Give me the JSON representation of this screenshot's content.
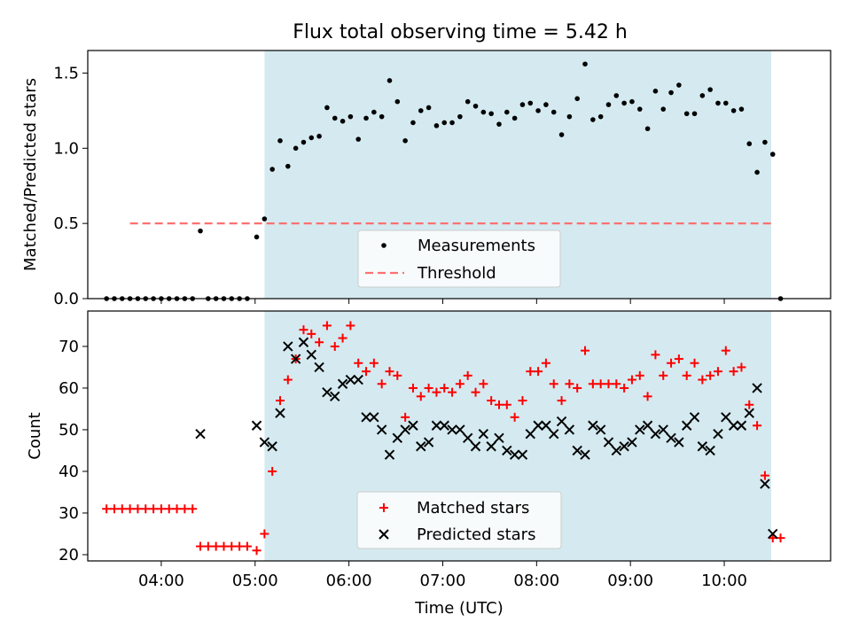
{
  "title": "Flux total observing time = 5.42 h",
  "colors": {
    "measurement": "#000000",
    "threshold": "#ff7070",
    "matched": "#ff0000",
    "predicted": "#000000",
    "observing_span": "#d4eaf0"
  },
  "chart_data": [
    {
      "type": "scatter",
      "xlabel": "",
      "ylabel": "Matched/Predicted stars",
      "ylim": [
        0,
        1.65
      ],
      "yticks": [
        0,
        0.5,
        1.0,
        1.5
      ],
      "ytick_labels": [
        "0.0",
        "0.5",
        "1.0",
        "1.5"
      ],
      "shaded_span": [
        "05:06",
        "10:30"
      ],
      "threshold": 0.5,
      "threshold_span": [
        "03:40",
        "10:32"
      ],
      "legend": {
        "placement": "lower-center",
        "entries": [
          "Measurements",
          "Threshold"
        ]
      },
      "series": [
        {
          "name": "Measurements",
          "points": [
            [
              "03:25",
              0
            ],
            [
              "03:30",
              0
            ],
            [
              "03:35",
              0
            ],
            [
              "03:40",
              0
            ],
            [
              "03:45",
              0
            ],
            [
              "03:50",
              0
            ],
            [
              "03:55",
              0
            ],
            [
              "04:00",
              0
            ],
            [
              "04:05",
              0
            ],
            [
              "04:10",
              0
            ],
            [
              "04:15",
              0
            ],
            [
              "04:20",
              0
            ],
            [
              "04:25",
              0.45
            ],
            [
              "04:30",
              0
            ],
            [
              "04:35",
              0
            ],
            [
              "04:40",
              0
            ],
            [
              "04:45",
              0
            ],
            [
              "04:50",
              0
            ],
            [
              "04:55",
              0
            ],
            [
              "05:01",
              0.41
            ],
            [
              "05:06",
              0.53
            ],
            [
              "05:11",
              0.86
            ],
            [
              "05:16",
              1.05
            ],
            [
              "05:21",
              0.88
            ],
            [
              "05:26",
              1.0
            ],
            [
              "05:31",
              1.04
            ],
            [
              "05:36",
              1.07
            ],
            [
              "05:41",
              1.08
            ],
            [
              "05:46",
              1.27
            ],
            [
              "05:51",
              1.2
            ],
            [
              "05:56",
              1.18
            ],
            [
              "06:01",
              1.21
            ],
            [
              "06:06",
              1.06
            ],
            [
              "06:11",
              1.2
            ],
            [
              "06:16",
              1.24
            ],
            [
              "06:21",
              1.21
            ],
            [
              "06:26",
              1.45
            ],
            [
              "06:31",
              1.31
            ],
            [
              "06:36",
              1.05
            ],
            [
              "06:41",
              1.17
            ],
            [
              "06:46",
              1.25
            ],
            [
              "06:51",
              1.27
            ],
            [
              "06:56",
              1.15
            ],
            [
              "07:01",
              1.17
            ],
            [
              "07:06",
              1.17
            ],
            [
              "07:11",
              1.21
            ],
            [
              "07:16",
              1.31
            ],
            [
              "07:21",
              1.28
            ],
            [
              "07:26",
              1.24
            ],
            [
              "07:31",
              1.23
            ],
            [
              "07:36",
              1.16
            ],
            [
              "07:41",
              1.24
            ],
            [
              "07:46",
              1.2
            ],
            [
              "07:51",
              1.29
            ],
            [
              "07:56",
              1.3
            ],
            [
              "08:01",
              1.25
            ],
            [
              "08:06",
              1.29
            ],
            [
              "08:11",
              1.24
            ],
            [
              "08:16",
              1.09
            ],
            [
              "08:21",
              1.21
            ],
            [
              "08:26",
              1.33
            ],
            [
              "08:31",
              1.56
            ],
            [
              "08:36",
              1.19
            ],
            [
              "08:41",
              1.21
            ],
            [
              "08:46",
              1.29
            ],
            [
              "08:51",
              1.35
            ],
            [
              "08:56",
              1.3
            ],
            [
              "09:01",
              1.31
            ],
            [
              "09:06",
              1.26
            ],
            [
              "09:11",
              1.13
            ],
            [
              "09:16",
              1.38
            ],
            [
              "09:21",
              1.26
            ],
            [
              "09:26",
              1.37
            ],
            [
              "09:31",
              1.42
            ],
            [
              "09:36",
              1.23
            ],
            [
              "09:41",
              1.23
            ],
            [
              "09:46",
              1.35
            ],
            [
              "09:51",
              1.39
            ],
            [
              "09:56",
              1.3
            ],
            [
              "10:01",
              1.3
            ],
            [
              "10:06",
              1.25
            ],
            [
              "10:11",
              1.26
            ],
            [
              "10:16",
              1.03
            ],
            [
              "10:21",
              0.84
            ],
            [
              "10:26",
              1.04
            ],
            [
              "10:31",
              0.96
            ],
            [
              "10:36",
              0
            ]
          ]
        }
      ]
    },
    {
      "type": "scatter",
      "xlabel": "Time (UTC)",
      "ylabel": "Count",
      "xlim": [
        "03:13",
        "11:08"
      ],
      "ylim": [
        18.5,
        78.5
      ],
      "yticks": [
        20,
        30,
        40,
        50,
        60,
        70
      ],
      "xticks": [
        "04:00",
        "05:00",
        "06:00",
        "07:00",
        "08:00",
        "09:00",
        "10:00"
      ],
      "shaded_span": [
        "05:06",
        "10:30"
      ],
      "legend": {
        "placement": "lower-center",
        "entries": [
          "Matched stars",
          "Predicted stars"
        ]
      },
      "series": [
        {
          "name": "Matched stars",
          "points": [
            [
              "03:25",
              31
            ],
            [
              "03:30",
              31
            ],
            [
              "03:35",
              31
            ],
            [
              "03:40",
              31
            ],
            [
              "03:45",
              31
            ],
            [
              "03:50",
              31
            ],
            [
              "03:55",
              31
            ],
            [
              "04:00",
              31
            ],
            [
              "04:05",
              31
            ],
            [
              "04:10",
              31
            ],
            [
              "04:15",
              31
            ],
            [
              "04:20",
              31
            ],
            [
              "04:25",
              22
            ],
            [
              "04:30",
              22
            ],
            [
              "04:35",
              22
            ],
            [
              "04:40",
              22
            ],
            [
              "04:45",
              22
            ],
            [
              "04:50",
              22
            ],
            [
              "04:55",
              22
            ],
            [
              "05:01",
              21
            ],
            [
              "05:06",
              25
            ],
            [
              "05:11",
              40
            ],
            [
              "05:16",
              57
            ],
            [
              "05:21",
              62
            ],
            [
              "05:26",
              67
            ],
            [
              "05:31",
              74
            ],
            [
              "05:36",
              73
            ],
            [
              "05:41",
              71
            ],
            [
              "05:46",
              75
            ],
            [
              "05:51",
              70
            ],
            [
              "05:56",
              72
            ],
            [
              "06:01",
              75
            ],
            [
              "06:06",
              66
            ],
            [
              "06:11",
              64
            ],
            [
              "06:16",
              66
            ],
            [
              "06:21",
              61
            ],
            [
              "06:26",
              64
            ],
            [
              "06:31",
              63
            ],
            [
              "06:36",
              53
            ],
            [
              "06:41",
              60
            ],
            [
              "06:46",
              58
            ],
            [
              "06:51",
              60
            ],
            [
              "06:56",
              59
            ],
            [
              "07:01",
              60
            ],
            [
              "07:06",
              59
            ],
            [
              "07:11",
              61
            ],
            [
              "07:16",
              63
            ],
            [
              "07:21",
              59
            ],
            [
              "07:26",
              61
            ],
            [
              "07:31",
              57
            ],
            [
              "07:36",
              56
            ],
            [
              "07:41",
              56
            ],
            [
              "07:46",
              53
            ],
            [
              "07:51",
              57
            ],
            [
              "07:56",
              64
            ],
            [
              "08:01",
              64
            ],
            [
              "08:06",
              66
            ],
            [
              "08:11",
              61
            ],
            [
              "08:16",
              57
            ],
            [
              "08:21",
              61
            ],
            [
              "08:26",
              60
            ],
            [
              "08:31",
              69
            ],
            [
              "08:36",
              61
            ],
            [
              "08:41",
              61
            ],
            [
              "08:46",
              61
            ],
            [
              "08:51",
              61
            ],
            [
              "08:56",
              60
            ],
            [
              "09:01",
              62
            ],
            [
              "09:06",
              63
            ],
            [
              "09:11",
              58
            ],
            [
              "09:16",
              68
            ],
            [
              "09:21",
              63
            ],
            [
              "09:26",
              66
            ],
            [
              "09:31",
              67
            ],
            [
              "09:36",
              63
            ],
            [
              "09:41",
              66
            ],
            [
              "09:46",
              62
            ],
            [
              "09:51",
              63
            ],
            [
              "09:56",
              64
            ],
            [
              "10:01",
              69
            ],
            [
              "10:06",
              64
            ],
            [
              "10:11",
              65
            ],
            [
              "10:16",
              56
            ],
            [
              "10:21",
              51
            ],
            [
              "10:26",
              39
            ],
            [
              "10:31",
              24
            ],
            [
              "10:36",
              24
            ]
          ]
        },
        {
          "name": "Predicted stars",
          "points": [
            [
              "04:25",
              49
            ],
            [
              "05:01",
              51
            ],
            [
              "05:06",
              47
            ],
            [
              "05:11",
              46
            ],
            [
              "05:16",
              54
            ],
            [
              "05:21",
              70
            ],
            [
              "05:26",
              67
            ],
            [
              "05:31",
              71
            ],
            [
              "05:36",
              68
            ],
            [
              "05:41",
              65
            ],
            [
              "05:46",
              59
            ],
            [
              "05:51",
              58
            ],
            [
              "05:56",
              61
            ],
            [
              "06:01",
              62
            ],
            [
              "06:06",
              62
            ],
            [
              "06:11",
              53
            ],
            [
              "06:16",
              53
            ],
            [
              "06:21",
              50
            ],
            [
              "06:26",
              44
            ],
            [
              "06:31",
              48
            ],
            [
              "06:36",
              50
            ],
            [
              "06:41",
              51
            ],
            [
              "06:46",
              46
            ],
            [
              "06:51",
              47
            ],
            [
              "06:56",
              51
            ],
            [
              "07:01",
              51
            ],
            [
              "07:06",
              50
            ],
            [
              "07:11",
              50
            ],
            [
              "07:16",
              48
            ],
            [
              "07:21",
              46
            ],
            [
              "07:26",
              49
            ],
            [
              "07:31",
              46
            ],
            [
              "07:36",
              48
            ],
            [
              "07:41",
              45
            ],
            [
              "07:46",
              44
            ],
            [
              "07:51",
              44
            ],
            [
              "07:56",
              49
            ],
            [
              "08:01",
              51
            ],
            [
              "08:06",
              51
            ],
            [
              "08:11",
              49
            ],
            [
              "08:16",
              52
            ],
            [
              "08:21",
              50
            ],
            [
              "08:26",
              45
            ],
            [
              "08:31",
              44
            ],
            [
              "08:36",
              51
            ],
            [
              "08:41",
              50
            ],
            [
              "08:46",
              47
            ],
            [
              "08:51",
              45
            ],
            [
              "08:56",
              46
            ],
            [
              "09:01",
              47
            ],
            [
              "09:06",
              50
            ],
            [
              "09:11",
              51
            ],
            [
              "09:16",
              49
            ],
            [
              "09:21",
              50
            ],
            [
              "09:26",
              48
            ],
            [
              "09:31",
              47
            ],
            [
              "09:36",
              51
            ],
            [
              "09:41",
              53
            ],
            [
              "09:46",
              46
            ],
            [
              "09:51",
              45
            ],
            [
              "09:56",
              49
            ],
            [
              "10:01",
              53
            ],
            [
              "10:06",
              51
            ],
            [
              "10:11",
              51
            ],
            [
              "10:16",
              54
            ],
            [
              "10:21",
              60
            ],
            [
              "10:26",
              37
            ],
            [
              "10:31",
              25
            ]
          ]
        }
      ]
    }
  ]
}
